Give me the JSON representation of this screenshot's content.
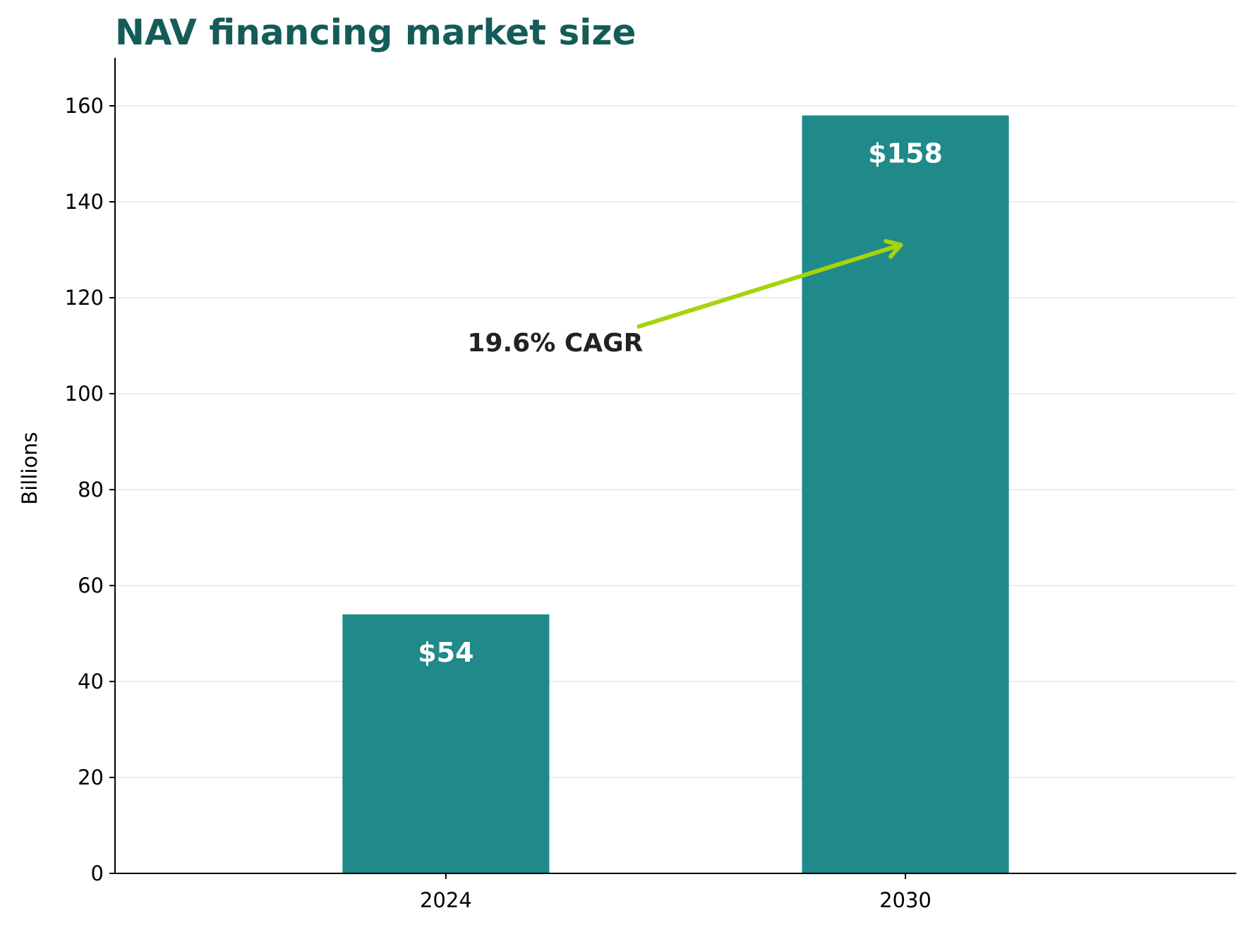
{
  "chart_data": {
    "type": "bar",
    "title": "NAV financing market size",
    "xlabel": "",
    "ylabel": "Billions",
    "categories": [
      "2024",
      "2030"
    ],
    "values": [
      54,
      158
    ],
    "value_labels": [
      "$54",
      "$158"
    ],
    "ylim": [
      0,
      170
    ],
    "yticks": [
      0,
      20,
      40,
      60,
      80,
      100,
      120,
      140,
      160
    ],
    "ytick_labels": [
      "0",
      "20",
      "40",
      "60",
      "80",
      "100",
      "120",
      "140",
      "160"
    ],
    "grid": "y",
    "annotation": {
      "text": "19.6% CAGR",
      "arrow_from": [
        0.42,
        114
      ],
      "arrow_to": [
        0.99,
        131
      ]
    },
    "colors": {
      "bar": "#1f8a89",
      "title": "#145c58",
      "arrow": "#a6d40c",
      "bar_label": "#ffffff"
    }
  }
}
